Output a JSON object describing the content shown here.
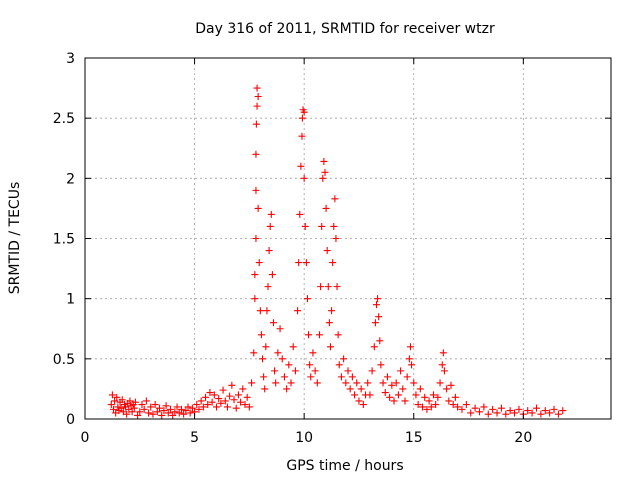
{
  "chart_data": {
    "type": "scatter",
    "title": "Day 316 of 2011, SRMTID for receiver wtzr",
    "xlabel": "GPS time / hours",
    "ylabel": "SRMTID / TECUs",
    "xlim": [
      0,
      24
    ],
    "ylim": [
      0,
      3
    ],
    "xticks": [
      0,
      5,
      10,
      15,
      20
    ],
    "yticks": [
      0,
      0.5,
      1,
      1.5,
      2,
      2.5,
      3
    ],
    "xtick_labels": [
      "0",
      "5",
      "10",
      "15",
      "20"
    ],
    "ytick_labels": [
      "0",
      "0.5",
      "1",
      "1.5",
      "2",
      "2.5",
      "3"
    ],
    "grid": true,
    "marker": "+",
    "color": "#ff0000",
    "series": [
      {
        "name": "wtzr",
        "points": [
          [
            1.2,
            0.12
          ],
          [
            1.25,
            0.2
          ],
          [
            1.3,
            0.08
          ],
          [
            1.35,
            0.15
          ],
          [
            1.4,
            0.05
          ],
          [
            1.45,
            0.18
          ],
          [
            1.5,
            0.1
          ],
          [
            1.55,
            0.07
          ],
          [
            1.6,
            0.14
          ],
          [
            1.65,
            0.09
          ],
          [
            1.7,
            0.16
          ],
          [
            1.75,
            0.06
          ],
          [
            1.8,
            0.12
          ],
          [
            1.85,
            0.1
          ],
          [
            1.9,
            0.04
          ],
          [
            1.95,
            0.13
          ],
          [
            2.0,
            0.08
          ],
          [
            2.05,
            0.15
          ],
          [
            2.1,
            0.11
          ],
          [
            2.15,
            0.06
          ],
          [
            2.2,
            0.12
          ],
          [
            2.25,
            0.09
          ],
          [
            2.3,
            0.14
          ],
          [
            2.4,
            0.03
          ],
          [
            2.5,
            0.06
          ],
          [
            2.6,
            0.12
          ],
          [
            2.7,
            0.08
          ],
          [
            2.8,
            0.15
          ],
          [
            2.9,
            0.05
          ],
          [
            3.0,
            0.1
          ],
          [
            3.1,
            0.04
          ],
          [
            3.2,
            0.12
          ],
          [
            3.3,
            0.06
          ],
          [
            3.4,
            0.09
          ],
          [
            3.5,
            0.03
          ],
          [
            3.6,
            0.07
          ],
          [
            3.7,
            0.11
          ],
          [
            3.8,
            0.05
          ],
          [
            3.9,
            0.08
          ],
          [
            4.0,
            0.03
          ],
          [
            4.1,
            0.06
          ],
          [
            4.2,
            0.1
          ],
          [
            4.3,
            0.05
          ],
          [
            4.4,
            0.08
          ],
          [
            4.5,
            0.04
          ],
          [
            4.6,
            0.07
          ],
          [
            4.7,
            0.1
          ],
          [
            4.8,
            0.05
          ],
          [
            4.9,
            0.09
          ],
          [
            5.0,
            0.06
          ],
          [
            5.1,
            0.12
          ],
          [
            5.2,
            0.08
          ],
          [
            5.3,
            0.15
          ],
          [
            5.4,
            0.1
          ],
          [
            5.5,
            0.18
          ],
          [
            5.6,
            0.12
          ],
          [
            5.7,
            0.22
          ],
          [
            5.8,
            0.14
          ],
          [
            5.9,
            0.2
          ],
          [
            6.0,
            0.1
          ],
          [
            6.1,
            0.17
          ],
          [
            6.2,
            0.13
          ],
          [
            6.3,
            0.24
          ],
          [
            6.4,
            0.15
          ],
          [
            6.5,
            0.1
          ],
          [
            6.6,
            0.19
          ],
          [
            6.7,
            0.28
          ],
          [
            6.8,
            0.16
          ],
          [
            6.9,
            0.09
          ],
          [
            7.0,
            0.2
          ],
          [
            7.1,
            0.14
          ],
          [
            7.2,
            0.25
          ],
          [
            7.3,
            0.12
          ],
          [
            7.4,
            0.18
          ],
          [
            7.5,
            0.1
          ],
          [
            7.6,
            0.3
          ],
          [
            7.7,
            0.55
          ],
          [
            7.75,
            1.0
          ],
          [
            7.75,
            1.2
          ],
          [
            7.8,
            1.5
          ],
          [
            7.8,
            1.9
          ],
          [
            7.8,
            2.2
          ],
          [
            7.82,
            2.45
          ],
          [
            7.85,
            2.6
          ],
          [
            7.85,
            2.75
          ],
          [
            7.9,
            2.68
          ],
          [
            7.9,
            1.75
          ],
          [
            7.95,
            1.3
          ],
          [
            8.0,
            0.9
          ],
          [
            8.05,
            0.7
          ],
          [
            8.1,
            0.5
          ],
          [
            8.15,
            0.35
          ],
          [
            8.2,
            0.25
          ],
          [
            8.25,
            0.6
          ],
          [
            8.3,
            0.9
          ],
          [
            8.35,
            1.1
          ],
          [
            8.4,
            1.4
          ],
          [
            8.45,
            1.6
          ],
          [
            8.5,
            1.7
          ],
          [
            8.55,
            1.2
          ],
          [
            8.6,
            0.8
          ],
          [
            8.65,
            0.4
          ],
          [
            8.7,
            0.3
          ],
          [
            8.8,
            0.55
          ],
          [
            8.9,
            0.75
          ],
          [
            9.0,
            0.5
          ],
          [
            9.1,
            0.35
          ],
          [
            9.2,
            0.25
          ],
          [
            9.3,
            0.45
          ],
          [
            9.4,
            0.3
          ],
          [
            9.5,
            0.6
          ],
          [
            9.6,
            0.4
          ],
          [
            9.7,
            0.9
          ],
          [
            9.75,
            1.3
          ],
          [
            9.8,
            1.7
          ],
          [
            9.85,
            2.1
          ],
          [
            9.9,
            2.35
          ],
          [
            9.92,
            2.5
          ],
          [
            9.95,
            2.57
          ],
          [
            10.0,
            2.55
          ],
          [
            10.0,
            2.0
          ],
          [
            10.05,
            1.6
          ],
          [
            10.1,
            1.3
          ],
          [
            10.15,
            1.0
          ],
          [
            10.2,
            0.7
          ],
          [
            10.25,
            0.45
          ],
          [
            10.3,
            0.35
          ],
          [
            10.4,
            0.55
          ],
          [
            10.5,
            0.4
          ],
          [
            10.6,
            0.3
          ],
          [
            10.7,
            0.7
          ],
          [
            10.75,
            1.1
          ],
          [
            10.8,
            1.6
          ],
          [
            10.85,
            2.0
          ],
          [
            10.9,
            2.14
          ],
          [
            10.95,
            2.05
          ],
          [
            11.0,
            1.75
          ],
          [
            11.05,
            1.4
          ],
          [
            11.1,
            1.1
          ],
          [
            11.15,
            0.8
          ],
          [
            11.2,
            0.6
          ],
          [
            11.25,
            0.9
          ],
          [
            11.3,
            1.3
          ],
          [
            11.35,
            1.6
          ],
          [
            11.4,
            1.83
          ],
          [
            11.45,
            1.5
          ],
          [
            11.5,
            1.1
          ],
          [
            11.55,
            0.7
          ],
          [
            11.6,
            0.45
          ],
          [
            11.7,
            0.35
          ],
          [
            11.8,
            0.5
          ],
          [
            11.9,
            0.3
          ],
          [
            12.0,
            0.4
          ],
          [
            12.1,
            0.25
          ],
          [
            12.2,
            0.35
          ],
          [
            12.3,
            0.2
          ],
          [
            12.4,
            0.3
          ],
          [
            12.5,
            0.15
          ],
          [
            12.6,
            0.25
          ],
          [
            12.7,
            0.12
          ],
          [
            12.8,
            0.2
          ],
          [
            12.9,
            0.3
          ],
          [
            13.0,
            0.2
          ],
          [
            13.1,
            0.4
          ],
          [
            13.2,
            0.6
          ],
          [
            13.25,
            0.8
          ],
          [
            13.3,
            0.95
          ],
          [
            13.35,
            1.0
          ],
          [
            13.4,
            0.85
          ],
          [
            13.45,
            0.65
          ],
          [
            13.5,
            0.45
          ],
          [
            13.6,
            0.3
          ],
          [
            13.7,
            0.22
          ],
          [
            13.8,
            0.35
          ],
          [
            13.9,
            0.18
          ],
          [
            14.0,
            0.28
          ],
          [
            14.1,
            0.15
          ],
          [
            14.2,
            0.3
          ],
          [
            14.3,
            0.2
          ],
          [
            14.4,
            0.4
          ],
          [
            14.5,
            0.25
          ],
          [
            14.6,
            0.15
          ],
          [
            14.7,
            0.35
          ],
          [
            14.8,
            0.5
          ],
          [
            14.85,
            0.6
          ],
          [
            14.9,
            0.45
          ],
          [
            15.0,
            0.3
          ],
          [
            15.1,
            0.2
          ],
          [
            15.2,
            0.12
          ],
          [
            15.3,
            0.25
          ],
          [
            15.4,
            0.1
          ],
          [
            15.5,
            0.18
          ],
          [
            15.6,
            0.08
          ],
          [
            15.7,
            0.15
          ],
          [
            15.8,
            0.1
          ],
          [
            15.9,
            0.2
          ],
          [
            16.0,
            0.12
          ],
          [
            16.1,
            0.18
          ],
          [
            16.2,
            0.3
          ],
          [
            16.3,
            0.45
          ],
          [
            16.35,
            0.55
          ],
          [
            16.4,
            0.4
          ],
          [
            16.5,
            0.25
          ],
          [
            16.6,
            0.15
          ],
          [
            16.7,
            0.28
          ],
          [
            16.8,
            0.12
          ],
          [
            16.9,
            0.18
          ],
          [
            17.0,
            0.1
          ],
          [
            17.2,
            0.08
          ],
          [
            17.4,
            0.12
          ],
          [
            17.6,
            0.05
          ],
          [
            17.8,
            0.09
          ],
          [
            18.0,
            0.06
          ],
          [
            18.2,
            0.1
          ],
          [
            18.4,
            0.04
          ],
          [
            18.6,
            0.08
          ],
          [
            18.8,
            0.05
          ],
          [
            19.0,
            0.09
          ],
          [
            19.2,
            0.04
          ],
          [
            19.4,
            0.07
          ],
          [
            19.6,
            0.05
          ],
          [
            19.8,
            0.08
          ],
          [
            20.0,
            0.04
          ],
          [
            20.2,
            0.07
          ],
          [
            20.4,
            0.05
          ],
          [
            20.6,
            0.09
          ],
          [
            20.8,
            0.04
          ],
          [
            21.0,
            0.07
          ],
          [
            21.2,
            0.05
          ],
          [
            21.4,
            0.08
          ],
          [
            21.6,
            0.04
          ],
          [
            21.8,
            0.07
          ]
        ]
      }
    ]
  }
}
